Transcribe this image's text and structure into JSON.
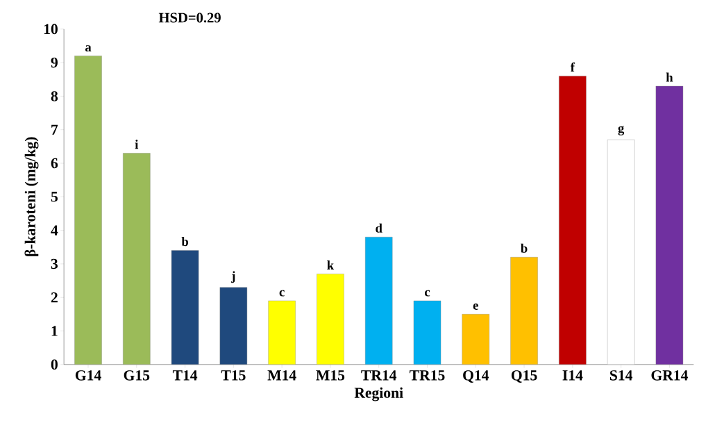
{
  "chart_data": {
    "type": "bar",
    "xlabel": "Regioni",
    "ylabel": "β-karoteni (mg/kg)",
    "annotations": [
      "HSD=0.29"
    ],
    "categories": [
      "G14",
      "G15",
      "T14",
      "T15",
      "M14",
      "M15",
      "TR14",
      "TR15",
      "Q14",
      "Q15",
      "I14",
      "S14",
      "GR14"
    ],
    "values": [
      9.2,
      6.3,
      3.4,
      2.3,
      1.9,
      2.7,
      3.8,
      1.9,
      1.5,
      3.2,
      8.6,
      6.7,
      8.3
    ],
    "colors": [
      "#9bbb59",
      "#9bbb59",
      "#1f497d",
      "#1f497d",
      "#ffff00",
      "#ffff00",
      "#00b0f0",
      "#00b0f0",
      "#ffc000",
      "#ffc000",
      "#c00000",
      "#ffffff",
      "#7030a0"
    ],
    "value_labels": [
      "a",
      "i",
      "b",
      "j",
      "c",
      "k",
      "d",
      "c",
      "e",
      "b",
      "f",
      "g",
      "h"
    ],
    "ylim": [
      0,
      10
    ],
    "yticks": [
      0,
      1,
      2,
      3,
      4,
      5,
      6,
      7,
      8,
      9,
      10
    ],
    "grid": false
  }
}
